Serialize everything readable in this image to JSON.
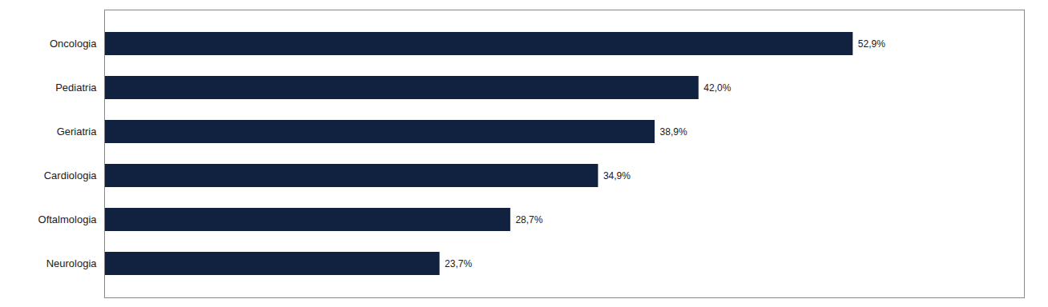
{
  "chart_data": {
    "type": "bar",
    "orientation": "horizontal",
    "categories": [
      "Neurologia",
      "Oftalmologia",
      "Cardiologia",
      "Geriatria",
      "Pediatria",
      "Oncologia"
    ],
    "values": [
      23.7,
      28.7,
      34.9,
      38.9,
      42.0,
      52.9
    ],
    "value_labels": [
      "23,7%",
      "28,7%",
      "34,9%",
      "38,9%",
      "42,0%",
      "52,9%"
    ],
    "color": "#112240",
    "xlim": [
      0,
      65
    ],
    "grid": false,
    "data_labels": true,
    "tick_labels": "y"
  }
}
